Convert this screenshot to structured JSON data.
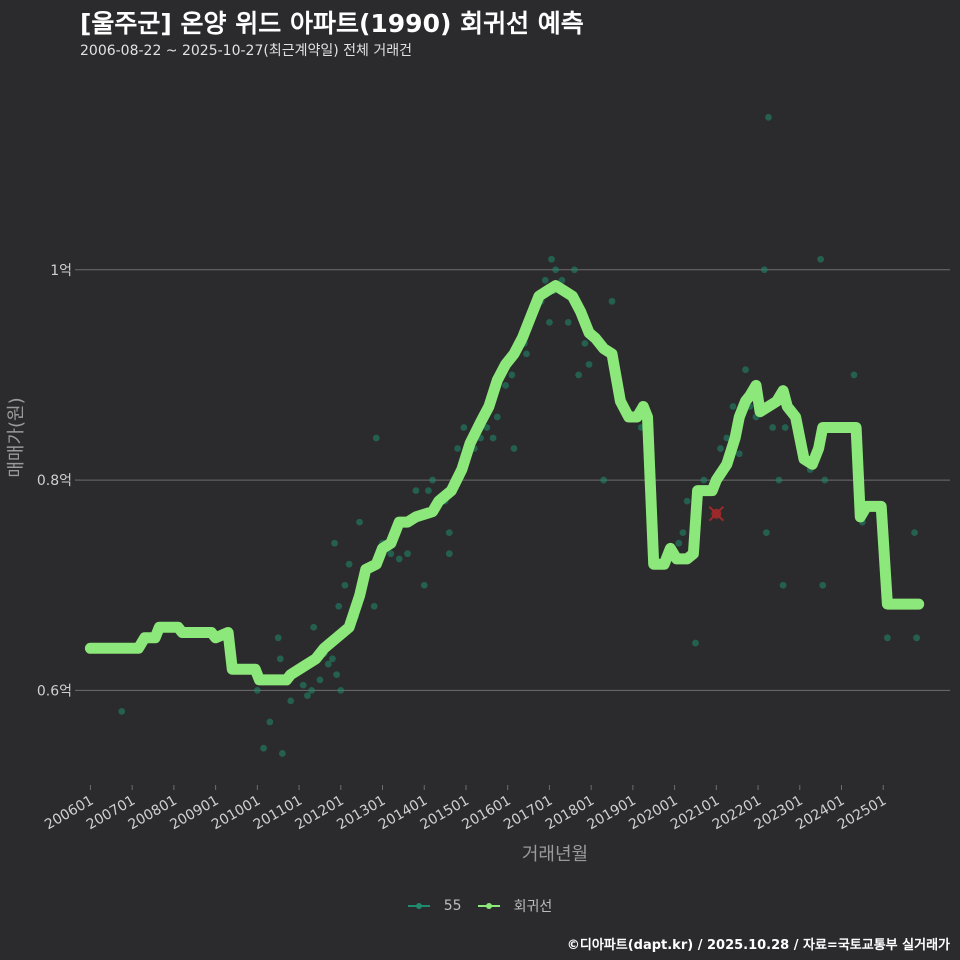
{
  "title": "[울주군] 온양 위드 아파트(1990) 회귀선 예측",
  "subtitle": "2006-08-22 ~ 2025-10-27(최근계약일) 전체 거래건",
  "footer": "©디아파트(dapt.kr) / 2025.10.28 / 자료=국토교통부 실거래가",
  "colors": {
    "background": "#2b2a2c",
    "grid": "#6e6e6e",
    "points": "#1f8a6e",
    "regression": "#8ce87a",
    "latest_marker": "#9e2a2a"
  },
  "legend": [
    {
      "label": "55",
      "color": "#1f8a6e"
    },
    {
      "label": "회귀선",
      "color": "#8ce87a"
    }
  ],
  "chart_data": {
    "type": "scatter",
    "xlabel": "거래년월",
    "ylabel": "매매가(원)",
    "xlim": [
      2005.75,
      2026.6
    ],
    "ylim": [
      0.51,
      1.19
    ],
    "x_ticks": [
      {
        "value": 2006,
        "label": "200601"
      },
      {
        "value": 2007,
        "label": "200701"
      },
      {
        "value": 2008,
        "label": "200801"
      },
      {
        "value": 2009,
        "label": "200901"
      },
      {
        "value": 2010,
        "label": "201001"
      },
      {
        "value": 2011,
        "label": "201101"
      },
      {
        "value": 2012,
        "label": "201201"
      },
      {
        "value": 2013,
        "label": "201301"
      },
      {
        "value": 2014,
        "label": "201401"
      },
      {
        "value": 2015,
        "label": "201501"
      },
      {
        "value": 2016,
        "label": "201601"
      },
      {
        "value": 2017,
        "label": "201701"
      },
      {
        "value": 2018,
        "label": "201801"
      },
      {
        "value": 2019,
        "label": "201901"
      },
      {
        "value": 2020,
        "label": "202001"
      },
      {
        "value": 2021,
        "label": "202101"
      },
      {
        "value": 2022,
        "label": "202201"
      },
      {
        "value": 2023,
        "label": "202301"
      },
      {
        "value": 2024,
        "label": "202401"
      },
      {
        "value": 2025,
        "label": "202501"
      }
    ],
    "y_ticks": [
      {
        "value": 0.6,
        "label": "0.6억"
      },
      {
        "value": 0.8,
        "label": "0.8억"
      },
      {
        "value": 1.0,
        "label": "1억"
      }
    ],
    "series": [
      {
        "name": "55",
        "kind": "points",
        "points": [
          [
            2006.75,
            0.58
          ],
          [
            2010.0,
            0.6
          ],
          [
            2010.15,
            0.545
          ],
          [
            2010.3,
            0.57
          ],
          [
            2010.6,
            0.54
          ],
          [
            2010.8,
            0.59
          ],
          [
            2010.55,
            0.63
          ],
          [
            2010.5,
            0.65
          ],
          [
            2011.0,
            0.62
          ],
          [
            2011.1,
            0.605
          ],
          [
            2011.2,
            0.595
          ],
          [
            2011.3,
            0.6
          ],
          [
            2011.35,
            0.66
          ],
          [
            2011.5,
            0.61
          ],
          [
            2011.6,
            0.635
          ],
          [
            2011.7,
            0.625
          ],
          [
            2011.8,
            0.63
          ],
          [
            2011.9,
            0.615
          ],
          [
            2012.0,
            0.6
          ],
          [
            2011.95,
            0.68
          ],
          [
            2012.1,
            0.7
          ],
          [
            2012.2,
            0.72
          ],
          [
            2012.35,
            0.67
          ],
          [
            2012.45,
            0.76
          ],
          [
            2011.85,
            0.74
          ],
          [
            2012.8,
            0.68
          ],
          [
            2012.85,
            0.84
          ],
          [
            2013.0,
            0.74
          ],
          [
            2013.2,
            0.73
          ],
          [
            2013.4,
            0.725
          ],
          [
            2013.6,
            0.73
          ],
          [
            2013.8,
            0.79
          ],
          [
            2014.0,
            0.7
          ],
          [
            2014.1,
            0.79
          ],
          [
            2014.2,
            0.8
          ],
          [
            2014.5,
            0.78
          ],
          [
            2014.6,
            0.75
          ],
          [
            2014.6,
            0.73
          ],
          [
            2014.8,
            0.83
          ],
          [
            2014.95,
            0.85
          ],
          [
            2015.2,
            0.83
          ],
          [
            2015.35,
            0.84
          ],
          [
            2015.4,
            0.86
          ],
          [
            2015.5,
            0.85
          ],
          [
            2015.65,
            0.84
          ],
          [
            2015.75,
            0.86
          ],
          [
            2015.95,
            0.89
          ],
          [
            2016.1,
            0.9
          ],
          [
            2016.15,
            0.83
          ],
          [
            2016.4,
            0.93
          ],
          [
            2016.45,
            0.92
          ],
          [
            2016.6,
            0.96
          ],
          [
            2016.8,
            0.97
          ],
          [
            2016.9,
            0.99
          ],
          [
            2017.0,
            0.95
          ],
          [
            2017.05,
            1.01
          ],
          [
            2017.1,
            0.98
          ],
          [
            2017.15,
            1.0
          ],
          [
            2017.3,
            0.99
          ],
          [
            2017.45,
            0.95
          ],
          [
            2017.6,
            1.0
          ],
          [
            2017.7,
            0.9
          ],
          [
            2017.85,
            0.93
          ],
          [
            2017.95,
            0.91
          ],
          [
            2018.3,
            0.8
          ],
          [
            2018.5,
            0.97
          ],
          [
            2018.75,
            0.87
          ],
          [
            2019.2,
            0.85
          ],
          [
            2019.5,
            0.72
          ],
          [
            2019.8,
            0.73
          ],
          [
            2020.1,
            0.74
          ],
          [
            2020.2,
            0.75
          ],
          [
            2020.3,
            0.78
          ],
          [
            2020.5,
            0.645
          ],
          [
            2020.7,
            0.8
          ],
          [
            2020.9,
            0.79
          ],
          [
            2021.1,
            0.83
          ],
          [
            2021.25,
            0.84
          ],
          [
            2021.4,
            0.87
          ],
          [
            2021.55,
            0.825
          ],
          [
            2021.7,
            0.905
          ],
          [
            2021.8,
            0.87
          ],
          [
            2021.95,
            0.86
          ],
          [
            2022.05,
            0.87
          ],
          [
            2022.15,
            1.0
          ],
          [
            2022.2,
            0.75
          ],
          [
            2022.25,
            1.145
          ],
          [
            2022.35,
            0.85
          ],
          [
            2022.5,
            0.8
          ],
          [
            2022.6,
            0.7
          ],
          [
            2022.65,
            0.85
          ],
          [
            2022.75,
            0.87
          ],
          [
            2022.9,
            0.86
          ],
          [
            2023.1,
            0.82
          ],
          [
            2023.25,
            0.81
          ],
          [
            2023.5,
            1.01
          ],
          [
            2023.55,
            0.7
          ],
          [
            2023.6,
            0.8
          ],
          [
            2023.85,
            0.85
          ],
          [
            2024.0,
            0.85
          ],
          [
            2024.3,
            0.9
          ],
          [
            2024.5,
            0.76
          ],
          [
            2024.9,
            0.77
          ],
          [
            2025.1,
            0.65
          ],
          [
            2025.75,
            0.75
          ],
          [
            2025.8,
            0.65
          ]
        ]
      },
      {
        "name": "회귀선",
        "kind": "line",
        "points": [
          [
            2006.0,
            0.64
          ],
          [
            2007.15,
            0.64
          ],
          [
            2007.3,
            0.65
          ],
          [
            2007.55,
            0.65
          ],
          [
            2007.65,
            0.66
          ],
          [
            2008.1,
            0.66
          ],
          [
            2008.2,
            0.655
          ],
          [
            2008.9,
            0.655
          ],
          [
            2009.0,
            0.65
          ],
          [
            2009.3,
            0.655
          ],
          [
            2009.4,
            0.62
          ],
          [
            2009.7,
            0.62
          ],
          [
            2009.95,
            0.62
          ],
          [
            2010.05,
            0.61
          ],
          [
            2010.7,
            0.61
          ],
          [
            2010.8,
            0.615
          ],
          [
            2011.0,
            0.62
          ],
          [
            2011.4,
            0.63
          ],
          [
            2011.6,
            0.64
          ],
          [
            2011.9,
            0.65
          ],
          [
            2012.2,
            0.66
          ],
          [
            2012.45,
            0.69
          ],
          [
            2012.6,
            0.715
          ],
          [
            2012.85,
            0.72
          ],
          [
            2013.0,
            0.735
          ],
          [
            2013.2,
            0.74
          ],
          [
            2013.4,
            0.76
          ],
          [
            2013.6,
            0.76
          ],
          [
            2013.8,
            0.765
          ],
          [
            2014.2,
            0.77
          ],
          [
            2014.35,
            0.78
          ],
          [
            2014.65,
            0.79
          ],
          [
            2014.9,
            0.81
          ],
          [
            2015.1,
            0.835
          ],
          [
            2015.35,
            0.855
          ],
          [
            2015.55,
            0.87
          ],
          [
            2015.75,
            0.895
          ],
          [
            2015.95,
            0.91
          ],
          [
            2016.15,
            0.92
          ],
          [
            2016.35,
            0.935
          ],
          [
            2016.55,
            0.955
          ],
          [
            2016.75,
            0.975
          ],
          [
            2016.95,
            0.98
          ],
          [
            2017.15,
            0.985
          ],
          [
            2017.35,
            0.98
          ],
          [
            2017.55,
            0.975
          ],
          [
            2017.75,
            0.96
          ],
          [
            2017.95,
            0.94
          ],
          [
            2018.1,
            0.935
          ],
          [
            2018.3,
            0.925
          ],
          [
            2018.5,
            0.92
          ],
          [
            2018.7,
            0.875
          ],
          [
            2018.9,
            0.86
          ],
          [
            2019.1,
            0.86
          ],
          [
            2019.25,
            0.87
          ],
          [
            2019.35,
            0.86
          ],
          [
            2019.5,
            0.72
          ],
          [
            2019.75,
            0.72
          ],
          [
            2019.9,
            0.735
          ],
          [
            2020.05,
            0.725
          ],
          [
            2020.3,
            0.725
          ],
          [
            2020.45,
            0.73
          ],
          [
            2020.55,
            0.79
          ],
          [
            2020.9,
            0.79
          ],
          [
            2021.0,
            0.8
          ],
          [
            2021.25,
            0.815
          ],
          [
            2021.45,
            0.84
          ],
          [
            2021.55,
            0.86
          ],
          [
            2021.7,
            0.875
          ],
          [
            2021.8,
            0.88
          ],
          [
            2021.95,
            0.89
          ],
          [
            2022.05,
            0.865
          ],
          [
            2022.25,
            0.87
          ],
          [
            2022.45,
            0.875
          ],
          [
            2022.6,
            0.885
          ],
          [
            2022.7,
            0.87
          ],
          [
            2022.9,
            0.86
          ],
          [
            2023.1,
            0.82
          ],
          [
            2023.3,
            0.815
          ],
          [
            2023.45,
            0.83
          ],
          [
            2023.55,
            0.85
          ],
          [
            2023.85,
            0.85
          ],
          [
            2024.15,
            0.85
          ],
          [
            2024.35,
            0.85
          ],
          [
            2024.45,
            0.765
          ],
          [
            2024.6,
            0.775
          ],
          [
            2024.95,
            0.775
          ],
          [
            2025.1,
            0.682
          ],
          [
            2025.85,
            0.682
          ]
        ]
      }
    ],
    "latest_marker": {
      "x": 2021.0,
      "y": 0.768
    }
  }
}
